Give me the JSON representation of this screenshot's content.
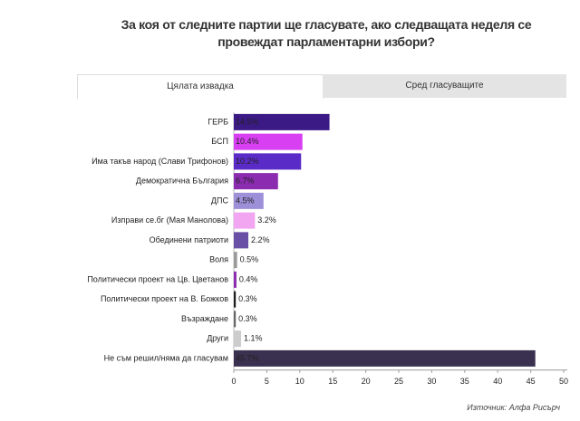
{
  "chart_data": {
    "type": "bar",
    "orientation": "horizontal",
    "title": "За коя от следните партии ще гласувате, ако следващата неделя се провеждат парламентарни избори?",
    "tabs": [
      "Цялата извадка",
      "Сред гласуващите"
    ],
    "source": "Източник: Алфа Рисърч",
    "categories": [
      "ГЕРБ",
      "БСП",
      "Има такъв народ (Слави Трифонов)",
      "Демократична България",
      "ДПС",
      "Изправи се.бг (Мая Манолова)",
      "Обединени патриоти",
      "Воля",
      "Политически проект на Цв. Цветанов",
      "Политически проект на В. Божков",
      "Възраждане",
      "Други",
      "Не съм решил/няма да гласувам"
    ],
    "values": [
      14.5,
      10.4,
      10.2,
      6.7,
      4.5,
      3.2,
      2.2,
      0.5,
      0.4,
      0.3,
      0.3,
      1.1,
      45.7
    ],
    "value_labels": [
      "14.5%",
      "10.4%",
      "10.2%",
      "6.7%",
      "4.5%",
      "3.2%",
      "2.2%",
      "0.5%",
      "0.4%",
      "0.3%",
      "0.3%",
      "1.1%",
      "45.7%"
    ],
    "colors": [
      "#3b1a86",
      "#d83ef2",
      "#5a2bc6",
      "#8b2cb0",
      "#9d90d8",
      "#f2a6f2",
      "#6a4fa6",
      "#9a9a9a",
      "#8b2cb0",
      "#1e1e1e",
      "#666666",
      "#cccccc",
      "#3a3150"
    ],
    "xlim": [
      0,
      50
    ],
    "xticks": [
      0,
      5,
      10,
      15,
      20,
      25,
      30,
      35,
      40,
      45,
      50
    ],
    "grid": false
  }
}
